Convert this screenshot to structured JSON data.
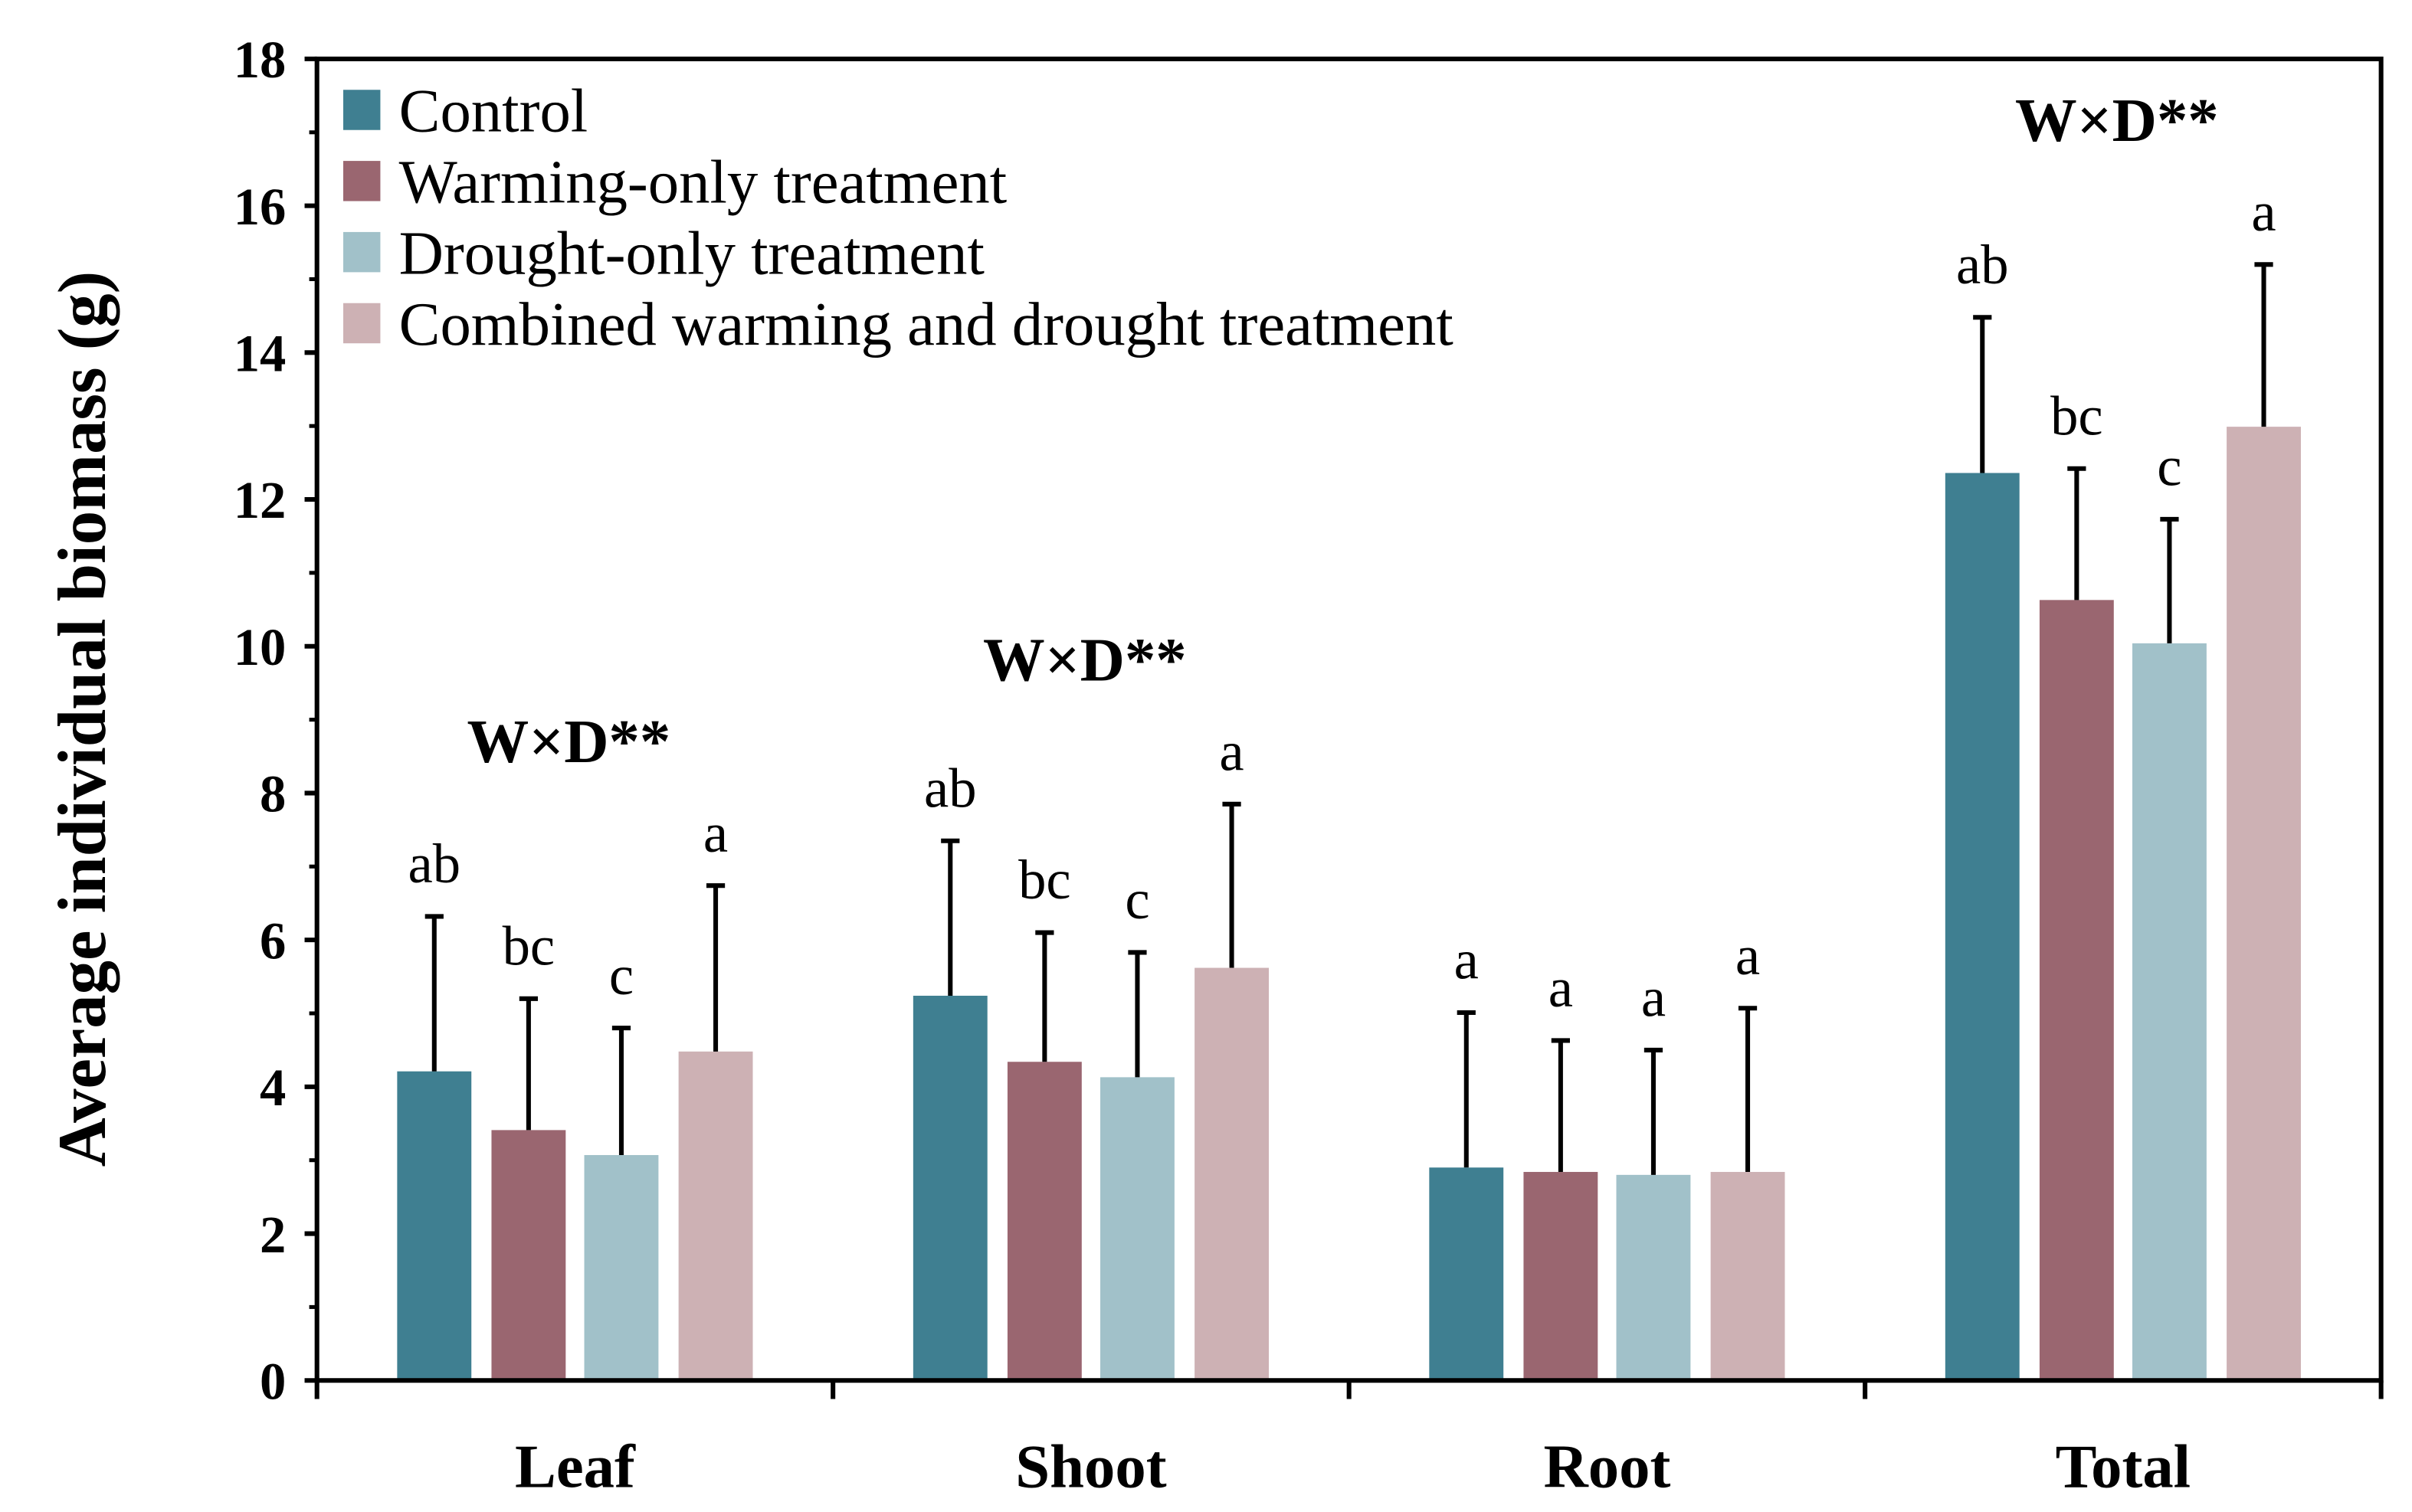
{
  "chart_data": {
    "type": "bar",
    "title": "",
    "xlabel": "",
    "ylabel": "Average individual biomass (g)",
    "ylim": [
      0,
      18
    ],
    "yticks": [
      "0",
      "2",
      "4",
      "6",
      "8",
      "10",
      "12",
      "14",
      "16",
      "18"
    ],
    "categories": [
      "Leaf",
      "Shoot",
      "Root",
      "Total"
    ],
    "legend_position": "top-left",
    "series": [
      {
        "name": "Control",
        "color": "#3f7f91",
        "values": [
          4.21,
          5.24,
          2.9,
          12.36
        ],
        "error": [
          2.11,
          2.11,
          2.11,
          2.12
        ],
        "letters": [
          "ab",
          "ab",
          "a",
          "ab"
        ]
      },
      {
        "name": "Warming-only treatment",
        "color": "#9a6670",
        "values": [
          3.41,
          4.34,
          2.84,
          10.63
        ],
        "error": [
          1.79,
          1.76,
          1.79,
          1.79
        ],
        "letters": [
          "bc",
          "bc",
          "a",
          "bc"
        ]
      },
      {
        "name": "Drought-only treatment",
        "color": "#a1c1c9",
        "values": [
          3.07,
          4.13,
          2.8,
          10.04
        ],
        "error": [
          1.73,
          1.7,
          1.7,
          1.69
        ],
        "letters": [
          "c",
          "c",
          "a",
          "c"
        ]
      },
      {
        "name": "Combined warming and drought treatment",
        "color": "#cdb1b4",
        "values": [
          4.48,
          5.62,
          2.84,
          12.99
        ],
        "error": [
          2.26,
          2.23,
          2.23,
          2.21
        ],
        "letters": [
          "a",
          "a",
          "a",
          "a"
        ]
      }
    ],
    "annotations": [
      "W×D**",
      "W×D**",
      "",
      "W×D**"
    ]
  }
}
